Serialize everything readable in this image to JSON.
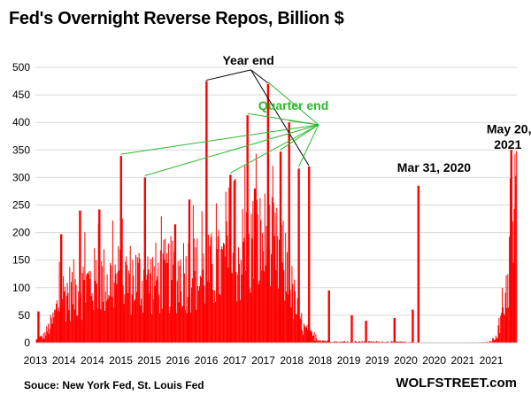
{
  "chart_data": {
    "type": "bar",
    "title": "Fed's Overnight Reverse Repos, Billion $",
    "xlabel": "",
    "ylabel": "",
    "ylim": [
      0,
      500
    ],
    "yticks": [
      0,
      50,
      100,
      150,
      200,
      250,
      300,
      350,
      400,
      450,
      500
    ],
    "xlim": [
      2013.0,
      2021.45
    ],
    "xticks": [
      {
        "value": 2013.0,
        "label": "2013"
      },
      {
        "value": 2013.5,
        "label": "2014"
      },
      {
        "value": 2014.0,
        "label": "2014"
      },
      {
        "value": 2014.5,
        "label": "2015"
      },
      {
        "value": 2015.0,
        "label": "2015"
      },
      {
        "value": 2015.5,
        "label": "2016"
      },
      {
        "value": 2016.0,
        "label": "2016"
      },
      {
        "value": 2016.5,
        "label": "2017"
      },
      {
        "value": 2017.0,
        "label": "2017"
      },
      {
        "value": 2017.5,
        "label": "2018"
      },
      {
        "value": 2018.0,
        "label": "2018"
      },
      {
        "value": 2018.5,
        "label": "2019"
      },
      {
        "value": 2019.0,
        "label": "2019"
      },
      {
        "value": 2019.5,
        "label": "2020"
      },
      {
        "value": 2020.0,
        "label": "2020"
      },
      {
        "value": 2020.5,
        "label": "2021"
      },
      {
        "value": 2021.0,
        "label": "2021"
      }
    ],
    "bar_color": "#ff0000",
    "annotation_color": "#000000",
    "quarter_color": "#2eb82e",
    "envelope": [
      [
        2013.0,
        5
      ],
      [
        2013.15,
        15
      ],
      [
        2013.3,
        45
      ],
      [
        2013.45,
        100
      ],
      [
        2013.7,
        110
      ],
      [
        2014.0,
        125
      ],
      [
        2014.3,
        130
      ],
      [
        2014.7,
        135
      ],
      [
        2015.0,
        130
      ],
      [
        2015.4,
        140
      ],
      [
        2015.7,
        150
      ],
      [
        2015.9,
        140
      ],
      [
        2016.2,
        150
      ],
      [
        2016.5,
        175
      ],
      [
        2016.8,
        200
      ],
      [
        2017.0,
        205
      ],
      [
        2017.2,
        185
      ],
      [
        2017.4,
        150
      ],
      [
        2017.55,
        80
      ],
      [
        2017.7,
        30
      ],
      [
        2017.9,
        10
      ],
      [
        2018.0,
        5
      ],
      [
        2018.3,
        2
      ],
      [
        2019.0,
        2
      ],
      [
        2019.4,
        2
      ],
      [
        2019.6,
        1
      ],
      [
        2020.0,
        0.5
      ],
      [
        2020.5,
        0.5
      ],
      [
        2020.9,
        1
      ],
      [
        2021.0,
        3
      ],
      [
        2021.15,
        30
      ],
      [
        2021.3,
        150
      ],
      [
        2021.45,
        300
      ]
    ],
    "spikes": [
      {
        "x": 2013.05,
        "value": 57
      },
      {
        "x": 2013.45,
        "value": 197
      },
      {
        "x": 2013.78,
        "value": 240
      },
      {
        "x": 2014.12,
        "value": 242
      },
      {
        "x": 2014.5,
        "value": 339
      },
      {
        "x": 2014.92,
        "value": 300
      },
      {
        "x": 2015.45,
        "value": 215
      },
      {
        "x": 2015.7,
        "value": 260
      },
      {
        "x": 2016.0,
        "value": 475
      },
      {
        "x": 2016.42,
        "value": 305
      },
      {
        "x": 2016.72,
        "value": 413
      },
      {
        "x": 2016.85,
        "value": 280
      },
      {
        "x": 2017.08,
        "value": 470
      },
      {
        "x": 2017.3,
        "value": 347
      },
      {
        "x": 2017.45,
        "value": 400
      },
      {
        "x": 2017.62,
        "value": 316
      },
      {
        "x": 2017.8,
        "value": 320
      },
      {
        "x": 2018.15,
        "value": 95
      },
      {
        "x": 2018.55,
        "value": 50
      },
      {
        "x": 2018.8,
        "value": 40
      },
      {
        "x": 2019.3,
        "value": 45
      },
      {
        "x": 2019.62,
        "value": 60
      },
      {
        "x": 2019.72,
        "value": 285
      },
      {
        "x": 2021.35,
        "value": 350
      }
    ],
    "annotations": [
      {
        "text": "Year end",
        "label_x": 2016.72,
        "label_y": 505,
        "targets": [
          [
            2016.0,
            475
          ],
          [
            2017.08,
            470
          ],
          [
            2017.8,
            320
          ]
        ]
      },
      {
        "text": "Quarter end",
        "label_x": 2018.0,
        "label_y": 423,
        "targets": [
          [
            2014.5,
            339
          ],
          [
            2014.92,
            300
          ],
          [
            2016.42,
            305
          ],
          [
            2016.72,
            413
          ],
          [
            2017.08,
            470
          ],
          [
            2017.3,
            347
          ],
          [
            2017.45,
            400
          ],
          [
            2017.62,
            316
          ]
        ]
      },
      {
        "text": "Mar 31, 2020",
        "label_x": 2019.35,
        "label_y": 310
      },
      {
        "text": "May 20,",
        "label_x": 2020.92,
        "label_y": 380
      },
      {
        "text": "2021",
        "label_x": 2021.05,
        "label_y": 352
      }
    ]
  },
  "footer": {
    "source": "Souce: New York Fed, St. Louis Fed",
    "brand": "WOLFSTREET.com"
  }
}
